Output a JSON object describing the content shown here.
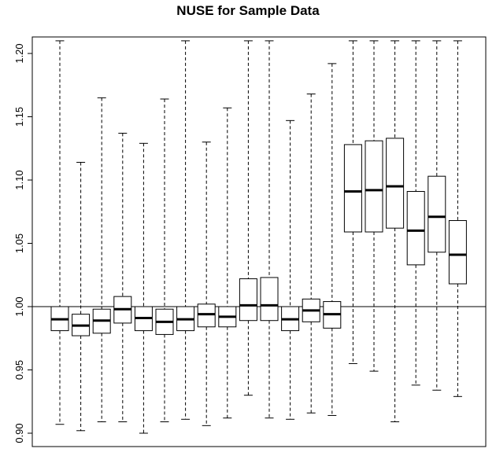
{
  "chart_data": {
    "type": "boxplot",
    "title": "NUSE for Sample Data",
    "xlabel": "",
    "ylabel": "",
    "ylim": [
      0.89,
      1.21
    ],
    "yticks": [
      "0.90",
      "0.95",
      "1.00",
      "1.05",
      "1.10",
      "1.15",
      "1.20"
    ],
    "reference_line": 1.0,
    "grid": false,
    "boxes": [
      {
        "min": 0.907,
        "q1": 0.981,
        "median": 0.99,
        "q3": 1.0,
        "max": 1.21
      },
      {
        "min": 0.902,
        "q1": 0.977,
        "median": 0.985,
        "q3": 0.994,
        "max": 1.114
      },
      {
        "min": 0.909,
        "q1": 0.979,
        "median": 0.989,
        "q3": 0.998,
        "max": 1.165
      },
      {
        "min": 0.909,
        "q1": 0.987,
        "median": 0.998,
        "q3": 1.008,
        "max": 1.137
      },
      {
        "min": 0.9,
        "q1": 0.981,
        "median": 0.991,
        "q3": 1.0,
        "max": 1.129
      },
      {
        "min": 0.909,
        "q1": 0.978,
        "median": 0.988,
        "q3": 0.998,
        "max": 1.164
      },
      {
        "min": 0.911,
        "q1": 0.981,
        "median": 0.99,
        "q3": 1.0,
        "max": 1.21
      },
      {
        "min": 0.906,
        "q1": 0.984,
        "median": 0.994,
        "q3": 1.002,
        "max": 1.13
      },
      {
        "min": 0.912,
        "q1": 0.984,
        "median": 0.992,
        "q3": 1.0,
        "max": 1.157
      },
      {
        "min": 0.93,
        "q1": 0.989,
        "median": 1.001,
        "q3": 1.022,
        "max": 1.21
      },
      {
        "min": 0.912,
        "q1": 0.989,
        "median": 1.001,
        "q3": 1.023,
        "max": 1.21
      },
      {
        "min": 0.911,
        "q1": 0.981,
        "median": 0.99,
        "q3": 1.0,
        "max": 1.147
      },
      {
        "min": 0.916,
        "q1": 0.988,
        "median": 0.997,
        "q3": 1.006,
        "max": 1.168
      },
      {
        "min": 0.914,
        "q1": 0.983,
        "median": 0.994,
        "q3": 1.004,
        "max": 1.192
      },
      {
        "min": 0.955,
        "q1": 1.059,
        "median": 1.091,
        "q3": 1.128,
        "max": 1.21
      },
      {
        "min": 0.949,
        "q1": 1.059,
        "median": 1.092,
        "q3": 1.131,
        "max": 1.21
      },
      {
        "min": 0.909,
        "q1": 1.062,
        "median": 1.095,
        "q3": 1.133,
        "max": 1.21
      },
      {
        "min": 0.938,
        "q1": 1.033,
        "median": 1.06,
        "q3": 1.091,
        "max": 1.21
      },
      {
        "min": 0.934,
        "q1": 1.043,
        "median": 1.071,
        "q3": 1.103,
        "max": 1.21
      },
      {
        "min": 0.929,
        "q1": 1.018,
        "median": 1.041,
        "q3": 1.068,
        "max": 1.21
      }
    ]
  }
}
